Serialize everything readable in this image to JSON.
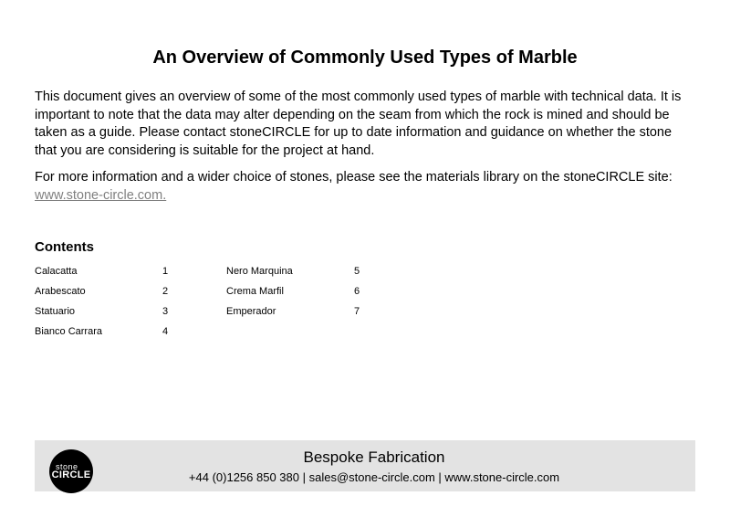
{
  "title": "An Overview of Commonly Used Types of Marble",
  "intro1": "This document gives an overview of some of the most commonly used types of marble with technical data. It is important to note that the data may alter depending on the seam from which the rock is mined and should be taken as a guide.  Please contact stoneCIRCLE for up to date information and guidance on whether the stone that you are considering is suitable for the project at hand.",
  "intro2_prefix": "For more information and a wider choice of stones, please see the materials library on the stoneCIRCLE site: ",
  "intro2_link": "www.stone-circle.com.",
  "contents_heading": "Contents",
  "toc": {
    "col1": [
      {
        "label": "Calacatta",
        "page": "1"
      },
      {
        "label": "Arabescato",
        "page": "2"
      },
      {
        "label": "Statuario",
        "page": "3"
      },
      {
        "label": "Bianco Carrara",
        "page": "4"
      }
    ],
    "col2": [
      {
        "label": "Nero Marquina",
        "page": "5"
      },
      {
        "label": "Crema Marfil",
        "page": "6"
      },
      {
        "label": "Emperador",
        "page": "7"
      }
    ]
  },
  "footer": {
    "logo_top": "stone",
    "logo_bottom": "CIRCLE",
    "title": "Bespoke Fabrication",
    "contact": "+44 (0)1256 850 380 | sales@stone-circle.com | www.stone-circle.com"
  }
}
